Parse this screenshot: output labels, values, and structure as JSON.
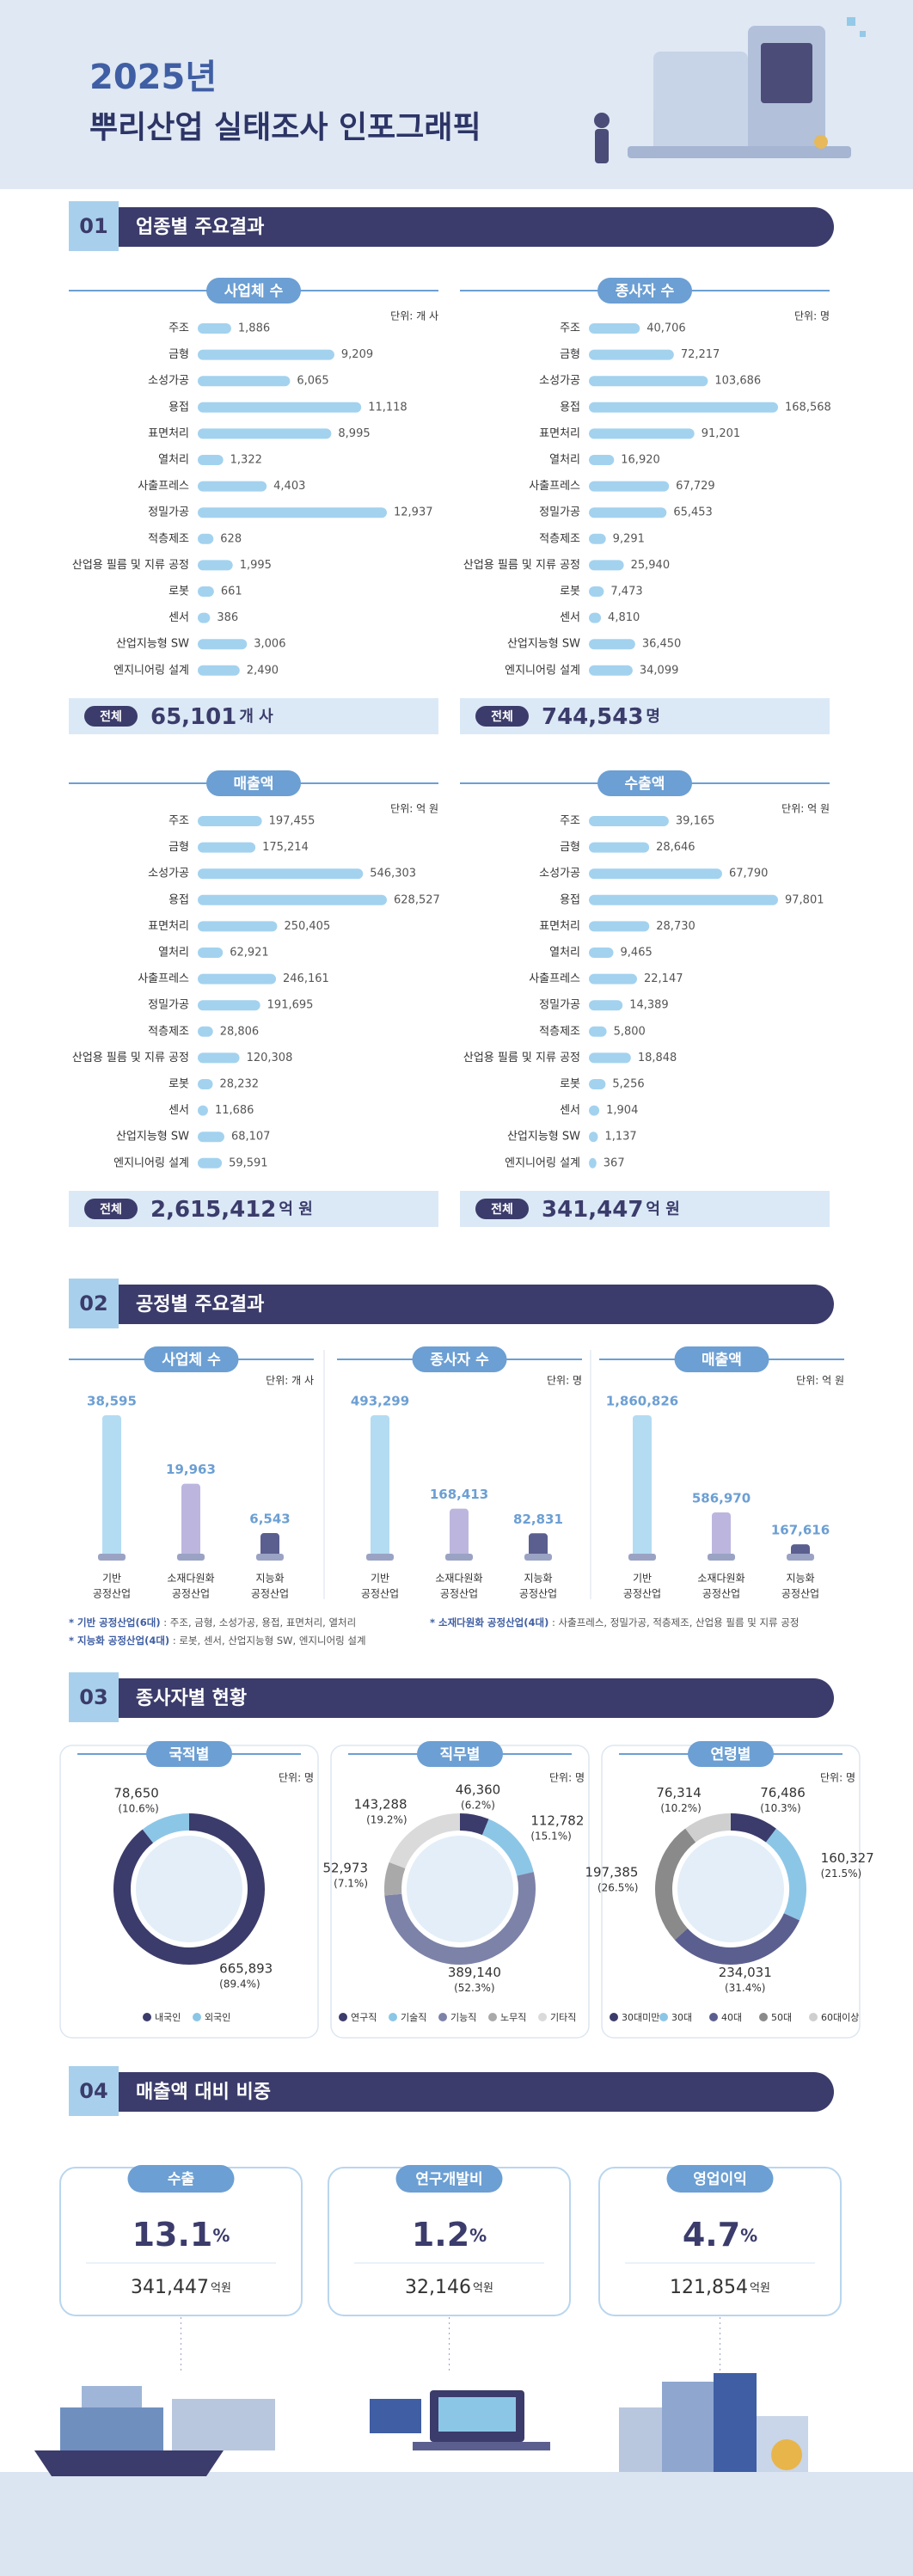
{
  "header": {
    "year": "2025년",
    "title": "뿌리산업 실태조사 인포그래픽"
  },
  "section1": {
    "number": "01",
    "title": "업종별 주요결과",
    "bar_color": "#a3d2ef",
    "total_label": "전체",
    "categories": [
      "주조",
      "금형",
      "소성가공",
      "용접",
      "표면처리",
      "열처리",
      "사출프레스",
      "정밀가공",
      "적층제조",
      "산업용 필름 및 지류 공정",
      "로봇",
      "센서",
      "산업지능형 SW",
      "엔지니어링 설계"
    ],
    "charts": [
      {
        "title": "사업체 수",
        "unit": "단위: 개 사",
        "values": [
          1886,
          9209,
          6065,
          11118,
          8995,
          1322,
          4403,
          12937,
          628,
          1995,
          661,
          386,
          3006,
          2490
        ],
        "value_labels": [
          "1,886",
          "9,209",
          "6,065",
          "11,118",
          "8,995",
          "1,322",
          "4,403",
          "12,937",
          "628",
          "1,995",
          "661",
          "386",
          "3,006",
          "2,490"
        ],
        "total": "65,101",
        "total_unit": "개 사"
      },
      {
        "title": "종사자 수",
        "unit": "단위: 명",
        "values": [
          40706,
          72217,
          103686,
          168568,
          91201,
          16920,
          67729,
          65453,
          9291,
          25940,
          7473,
          4810,
          36450,
          34099
        ],
        "value_labels": [
          "40,706",
          "72,217",
          "103,686",
          "168,568",
          "91,201",
          "16,920",
          "67,729",
          "65,453",
          "9,291",
          "25,940",
          "7,473",
          "4,810",
          "36,450",
          "34,099"
        ],
        "total": "744,543",
        "total_unit": "명"
      },
      {
        "title": "매출액",
        "unit": "단위: 억 원",
        "values": [
          197455,
          175214,
          546303,
          628527,
          250405,
          62921,
          246161,
          191695,
          28806,
          120308,
          28232,
          11686,
          68107,
          59591
        ],
        "value_labels": [
          "197,455",
          "175,214",
          "546,303",
          "628,527",
          "250,405",
          "62,921",
          "246,161",
          "191,695",
          "28,806",
          "120,308",
          "28,232",
          "11,686",
          "68,107",
          "59,591"
        ],
        "total": "2,615,412",
        "total_unit": "억 원"
      },
      {
        "title": "수출액",
        "unit": "단위: 억 원",
        "values": [
          39165,
          28646,
          67790,
          97801,
          28730,
          9465,
          22147,
          14389,
          5800,
          18848,
          5256,
          1904,
          1137,
          367
        ],
        "value_labels": [
          "39,165",
          "28,646",
          "67,790",
          "97,801",
          "28,730",
          "9,465",
          "22,147",
          "14,389",
          "5,800",
          "18,848",
          "5,256",
          "1,904",
          "1,137",
          "367"
        ],
        "total": "341,447",
        "total_unit": "억 원"
      }
    ]
  },
  "section2": {
    "number": "02",
    "title": "공정별 주요결과",
    "categories": [
      [
        "기반",
        "공정산업"
      ],
      [
        "소재다원화",
        "공정산업"
      ],
      [
        "지능화",
        "공정산업"
      ]
    ],
    "colors": [
      "#b3dcf2",
      "#bcb6de",
      "#5b5f8f"
    ],
    "charts": [
      {
        "title": "사업체 수",
        "unit": "단위: 개 사",
        "values": [
          38595,
          19963,
          6543
        ],
        "value_labels": [
          "38,595",
          "19,963",
          "6,543"
        ]
      },
      {
        "title": "종사자 수",
        "unit": "단위: 명",
        "values": [
          493299,
          168413,
          82831
        ],
        "value_labels": [
          "493,299",
          "168,413",
          "82,831"
        ]
      },
      {
        "title": "매출액",
        "unit": "단위: 억 원",
        "values": [
          1860826,
          586970,
          167616
        ],
        "value_labels": [
          "1,860,826",
          "586,970",
          "167,616"
        ]
      }
    ],
    "notes": [
      {
        "label": "* 기반 공정산업(6대)",
        "text": " : 주조, 금형, 소성가공, 용접, 표면처리, 열처리"
      },
      {
        "label": "* 소재다원화 공정산업(4대)",
        "text": " : 사출프레스, 정밀가공, 적층제조, 산업용 필름 및 지류 공정"
      },
      {
        "label": "* 지능화 공정산업(4대)",
        "text": " : 로봇, 센서, 산업지능형 SW, 엔지니어링 설계"
      }
    ]
  },
  "section3": {
    "number": "03",
    "title": "종사자별 현황",
    "charts": [
      {
        "title": "국적별",
        "unit": "단위: 명",
        "series": [
          {
            "name": "내국인",
            "color": "#3b3c6b",
            "value": 665893,
            "value_label": "665,893",
            "percent_label": "(89.4%)"
          },
          {
            "name": "외국인",
            "color": "#8cc6e7",
            "value": 78650,
            "value_label": "78,650",
            "percent_label": "(10.6%)"
          }
        ]
      },
      {
        "title": "직무별",
        "unit": "단위: 명",
        "series": [
          {
            "name": "연구직",
            "color": "#3b3c6b",
            "value": 46360,
            "value_label": "46,360",
            "percent_label": "(6.2%)"
          },
          {
            "name": "기술직",
            "color": "#8cc6e7",
            "value": 112782,
            "value_label": "112,782",
            "percent_label": "(15.1%)"
          },
          {
            "name": "기능직",
            "color": "#7d82a8",
            "value": 389140,
            "value_label": "389,140",
            "percent_label": "(52.3%)"
          },
          {
            "name": "노무직",
            "color": "#a9a9a9",
            "value": 52973,
            "value_label": "52,973",
            "percent_label": "(7.1%)"
          },
          {
            "name": "기타직",
            "color": "#dadada",
            "value": 143288,
            "value_label": "143,288",
            "percent_label": "(19.2%)"
          }
        ]
      },
      {
        "title": "연령별",
        "unit": "단위: 명",
        "series": [
          {
            "name": "30대미만",
            "color": "#3b3c6b",
            "value": 76486,
            "value_label": "76,486",
            "percent_label": "(10.3%)"
          },
          {
            "name": "30대",
            "color": "#8cc6e7",
            "value": 160327,
            "value_label": "160,327",
            "percent_label": "(21.5%)"
          },
          {
            "name": "40대",
            "color": "#5b5f8f",
            "value": 234031,
            "value_label": "234,031",
            "percent_label": "(31.4%)"
          },
          {
            "name": "50대",
            "color": "#8a8a8a",
            "value": 197385,
            "value_label": "197,385",
            "percent_label": "(26.5%)"
          },
          {
            "name": "60대이상",
            "color": "#cfcfcf",
            "value": 76314,
            "value_label": "76,314",
            "percent_label": "(10.2%)"
          }
        ]
      }
    ]
  },
  "section4": {
    "number": "04",
    "title": "매출액 대비 비중",
    "cards": [
      {
        "title": "수출",
        "percent": 13.1,
        "percent_unit": "%",
        "amount": "341,447",
        "amount_unit": "억원"
      },
      {
        "title": "연구개발비",
        "percent": 1.2,
        "percent_unit": "%",
        "amount": "32,146",
        "amount_unit": "억원"
      },
      {
        "title": "영업이익",
        "percent": 4.7,
        "percent_unit": "%",
        "amount": "121,854",
        "amount_unit": "억원"
      }
    ]
  }
}
